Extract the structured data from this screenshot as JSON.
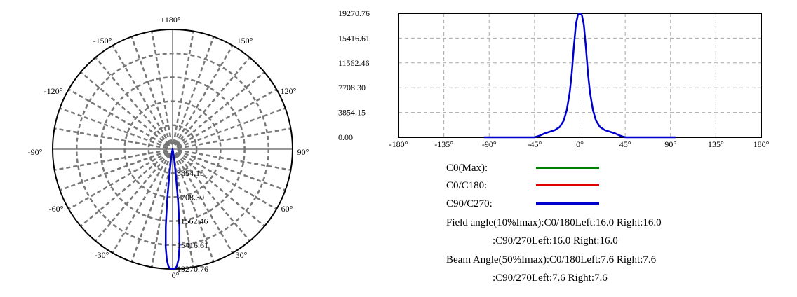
{
  "chart_data": [
    {
      "type": "polar",
      "angle_labels": [
        "±180°",
        "150°",
        "120°",
        "90°",
        "60°",
        "30°",
        "0°",
        "-30°",
        "-60°",
        "-90°",
        "-120°",
        "-150°"
      ],
      "radial_labels": [
        "3854.15",
        "7708.30",
        "11562.46",
        "15416.61",
        "19270.76"
      ],
      "rmax": 19270.76,
      "series": [
        {
          "name": "C90/C270",
          "color": "#0000CC",
          "angles": [
            -16,
            -12,
            -9,
            -7,
            -6,
            -5,
            -4,
            -3,
            -2,
            -1,
            0,
            1,
            2,
            3,
            4,
            5,
            6,
            7,
            9,
            12,
            16
          ],
          "values": [
            0,
            450,
            1500,
            4500,
            8500,
            12500,
            15800,
            17800,
            18900,
            19200,
            19270.76,
            19200,
            18900,
            17800,
            15800,
            12500,
            8500,
            4500,
            1500,
            450,
            0
          ]
        }
      ]
    },
    {
      "type": "line",
      "x_ticks": [
        "-180°",
        "-135°",
        "-90°",
        "-45°",
        "0°",
        "45°",
        "90°",
        "135°",
        "180°"
      ],
      "y_ticks": [
        "19270.76",
        "15416.61",
        "11562.46",
        "7708.30",
        "3854.15",
        "0.00"
      ],
      "xlim": [
        -180,
        180
      ],
      "ylim": [
        0,
        19270.76
      ],
      "grid": true,
      "series": [
        {
          "name": "C90/C270",
          "color": "#0000CC",
          "x": [
            -95,
            -45,
            -40,
            -35,
            -30,
            -25,
            -20,
            -16,
            -13,
            -10,
            -8,
            -6,
            -4,
            -2,
            0,
            2,
            4,
            6,
            8,
            10,
            13,
            16,
            20,
            25,
            30,
            35,
            40,
            45,
            95
          ],
          "y": [
            0,
            0,
            250,
            600,
            850,
            1100,
            1600,
            2600,
            4200,
            7000,
            10000,
            14000,
            17500,
            19000,
            19270.76,
            19000,
            17500,
            14000,
            10000,
            7000,
            4200,
            2600,
            1600,
            1100,
            850,
            600,
            250,
            0,
            0
          ]
        }
      ]
    }
  ],
  "legend": [
    {
      "label": "C0(Max):",
      "color": "#008000"
    },
    {
      "label": "C0/C180:",
      "color": "#DD0000"
    },
    {
      "label": "C90/C270:",
      "color": "#0000CC"
    }
  ],
  "info": {
    "field_line1": "Field angle(10%Imax):C0/180Left:16.0 Right:16.0",
    "field_line2": ":C90/270Left:16.0 Right:16.0",
    "beam_line1": "Beam Angle(50%Imax):C0/180Left:7.6 Right:7.6",
    "beam_line2": ":C90/270Left:7.6 Right:7.6"
  }
}
